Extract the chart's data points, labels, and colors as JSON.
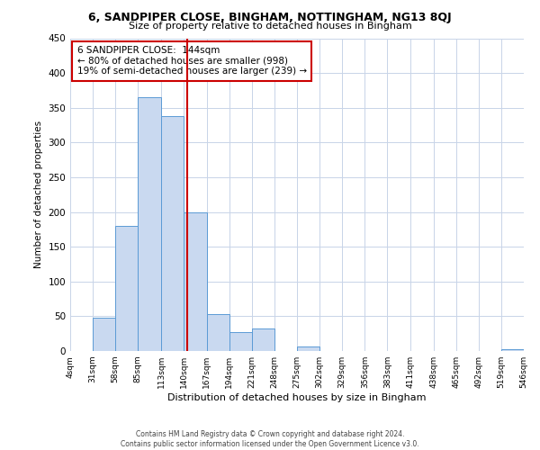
{
  "title": "6, SANDPIPER CLOSE, BINGHAM, NOTTINGHAM, NG13 8QJ",
  "subtitle": "Size of property relative to detached houses in Bingham",
  "xlabel": "Distribution of detached houses by size in Bingham",
  "ylabel": "Number of detached properties",
  "bin_edges": [
    4,
    31,
    58,
    85,
    113,
    140,
    167,
    194,
    221,
    248,
    275,
    302,
    329,
    356,
    383,
    411,
    438,
    465,
    492,
    519,
    546
  ],
  "bin_heights": [
    0,
    48,
    180,
    365,
    338,
    200,
    53,
    27,
    33,
    0,
    7,
    0,
    0,
    0,
    0,
    0,
    0,
    0,
    0,
    2
  ],
  "bar_facecolor": "#c9d9f0",
  "bar_edgecolor": "#5b9bd5",
  "vline_x": 144,
  "vline_color": "#cc0000",
  "annotation_title": "6 SANDPIPER CLOSE:  144sqm",
  "annotation_line1": "← 80% of detached houses are smaller (998)",
  "annotation_line2": "19% of semi-detached houses are larger (239) →",
  "annotation_box_edgecolor": "#cc0000",
  "ylim": [
    0,
    450
  ],
  "yticks": [
    0,
    50,
    100,
    150,
    200,
    250,
    300,
    350,
    400,
    450
  ],
  "tick_labels": [
    "4sqm",
    "31sqm",
    "58sqm",
    "85sqm",
    "113sqm",
    "140sqm",
    "167sqm",
    "194sqm",
    "221sqm",
    "248sqm",
    "275sqm",
    "302sqm",
    "329sqm",
    "356sqm",
    "383sqm",
    "411sqm",
    "438sqm",
    "465sqm",
    "492sqm",
    "519sqm",
    "546sqm"
  ],
  "footer_line1": "Contains HM Land Registry data © Crown copyright and database right 2024.",
  "footer_line2": "Contains public sector information licensed under the Open Government Licence v3.0.",
  "background_color": "#ffffff",
  "grid_color": "#c8d4e8",
  "title_fontsize": 9,
  "subtitle_fontsize": 8,
  "ylabel_fontsize": 7.5,
  "xlabel_fontsize": 8,
  "ytick_fontsize": 7.5,
  "xtick_fontsize": 6.5,
  "annotation_fontsize": 7.5,
  "footer_fontsize": 5.5
}
